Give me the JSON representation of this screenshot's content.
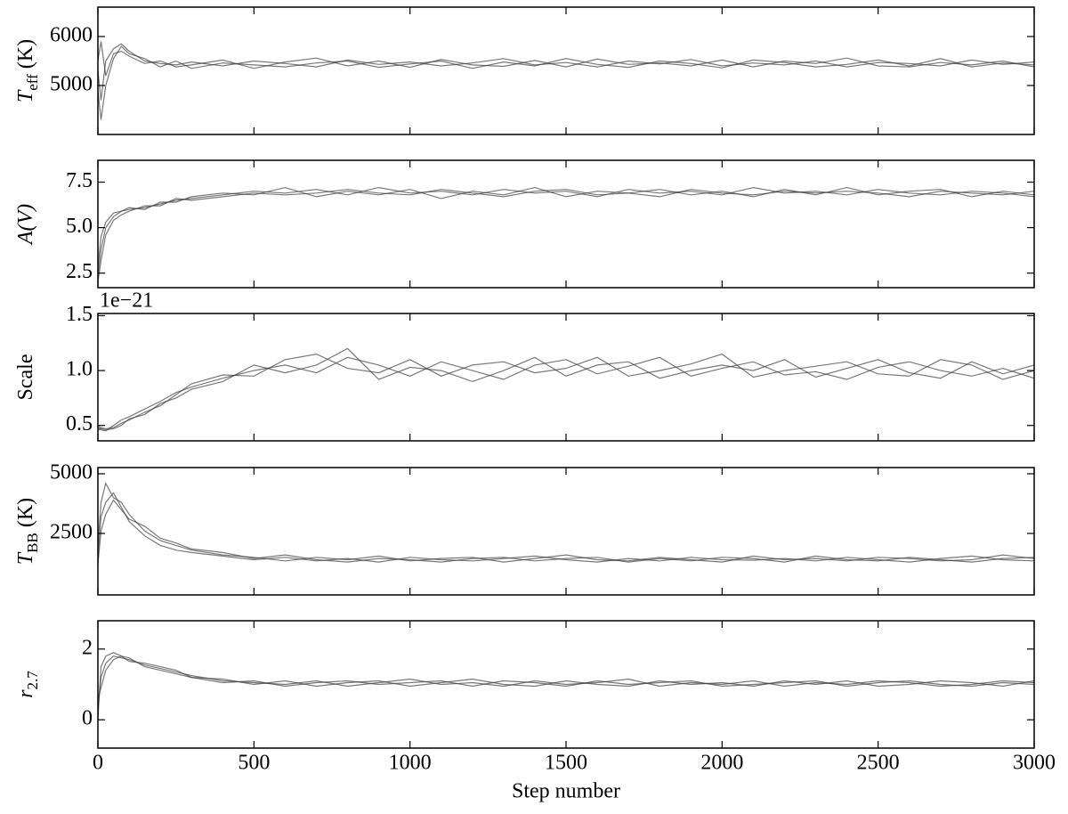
{
  "chart_data": [
    {
      "type": "line",
      "ylabel": "T",
      "ylabel_sub": "eff",
      "ylabel_suffix": "(K)",
      "ylabel_italic": true,
      "x": [
        0,
        10,
        25,
        50,
        75,
        100,
        150,
        200,
        250,
        300,
        400,
        500,
        600,
        700,
        800,
        900,
        1000,
        1100,
        1200,
        1300,
        1400,
        1500,
        1600,
        1700,
        1800,
        1900,
        2000,
        2100,
        2200,
        2300,
        2400,
        2500,
        2600,
        2700,
        2800,
        2900,
        3000
      ],
      "xlim": [
        0,
        3000
      ],
      "xticks": [
        0,
        500,
        1000,
        1500,
        2000,
        2500,
        3000
      ],
      "ylim": [
        4000,
        6600
      ],
      "yticks": [
        5000,
        6000
      ],
      "series": [
        {
          "color": "#404040",
          "values": [
            5300,
            4700,
            5500,
            5750,
            5850,
            5700,
            5500,
            5450,
            5420,
            5480,
            5400,
            5500,
            5450,
            5380,
            5520,
            5430,
            5480,
            5400,
            5460,
            5550,
            5420,
            5470,
            5380,
            5500,
            5440,
            5530,
            5400,
            5460,
            5420,
            5500,
            5380,
            5470,
            5450,
            5400,
            5520,
            5430,
            5480
          ]
        },
        {
          "color": "#404040",
          "values": [
            5500,
            5900,
            5200,
            5650,
            5700,
            5600,
            5450,
            5500,
            5380,
            5420,
            5520,
            5350,
            5480,
            5560,
            5400,
            5500,
            5370,
            5530,
            5420,
            5390,
            5510,
            5380,
            5540,
            5430,
            5460,
            5400,
            5520,
            5380,
            5500,
            5450,
            5560,
            5400,
            5380,
            5470,
            5420,
            5500,
            5380
          ]
        },
        {
          "color": "#404040",
          "values": [
            4900,
            4300,
            5000,
            5550,
            5800,
            5650,
            5550,
            5380,
            5500,
            5350,
            5460,
            5420,
            5380,
            5460,
            5500,
            5370,
            5440,
            5500,
            5350,
            5480,
            5400,
            5550,
            5430,
            5370,
            5500,
            5450,
            5360,
            5520,
            5470,
            5380,
            5430,
            5520,
            5400,
            5550,
            5380,
            5460,
            5420
          ]
        }
      ]
    },
    {
      "type": "line",
      "ylabel": "A(V)",
      "ylabel_italic": true,
      "x": [
        0,
        10,
        25,
        50,
        75,
        100,
        150,
        200,
        250,
        300,
        400,
        500,
        600,
        700,
        800,
        900,
        1000,
        1100,
        1200,
        1300,
        1400,
        1500,
        1600,
        1700,
        1800,
        1900,
        2000,
        2100,
        2200,
        2300,
        2400,
        2500,
        2600,
        2700,
        2800,
        2900,
        3000
      ],
      "xlim": [
        0,
        3000
      ],
      "xticks": [
        0,
        500,
        1000,
        1500,
        2000,
        2500,
        3000
      ],
      "ylim": [
        1.7,
        8.7
      ],
      "yticks": [
        2.5,
        {
          "value": 5,
          "label": "5.0"
        },
        7.5
      ],
      "series": [
        {
          "color": "#404040",
          "values": [
            2.3,
            3.8,
            5.0,
            5.6,
            5.9,
            6.0,
            6.1,
            6.3,
            6.5,
            6.6,
            6.8,
            7.0,
            6.9,
            7.1,
            6.8,
            7.2,
            6.9,
            7.0,
            6.8,
            7.1,
            6.9,
            7.0,
            6.7,
            7.1,
            6.9,
            7.0,
            6.8,
            7.2,
            6.9,
            7.0,
            6.8,
            7.1,
            6.9,
            6.8,
            7.0,
            6.9,
            6.7
          ]
        },
        {
          "color": "#404040",
          "values": [
            2.8,
            4.5,
            5.3,
            5.8,
            5.9,
            6.1,
            6.0,
            6.4,
            6.4,
            6.7,
            6.9,
            6.8,
            7.2,
            6.7,
            7.0,
            6.8,
            7.1,
            6.6,
            7.0,
            6.8,
            7.2,
            6.7,
            7.0,
            6.9,
            7.1,
            6.8,
            7.0,
            6.7,
            7.1,
            6.8,
            7.2,
            6.8,
            7.0,
            7.1,
            6.7,
            7.0,
            6.8
          ]
        },
        {
          "color": "#404040",
          "values": [
            2.0,
            3.2,
            4.6,
            5.4,
            5.7,
            5.9,
            6.2,
            6.2,
            6.6,
            6.5,
            6.7,
            6.9,
            6.8,
            6.9,
            7.1,
            6.9,
            6.8,
            7.1,
            6.9,
            6.7,
            7.0,
            7.1,
            6.8,
            6.9,
            6.7,
            7.1,
            6.9,
            6.8,
            7.0,
            6.9,
            7.0,
            6.9,
            6.7,
            7.0,
            6.9,
            6.8,
            7.0
          ]
        }
      ]
    },
    {
      "type": "line",
      "ylabel": "Scale",
      "ylabel_italic": false,
      "offset_text": "1e−21",
      "x": [
        0,
        10,
        25,
        50,
        75,
        100,
        150,
        200,
        250,
        300,
        400,
        500,
        600,
        700,
        800,
        900,
        1000,
        1100,
        1200,
        1300,
        1400,
        1500,
        1600,
        1700,
        1800,
        1900,
        2000,
        2100,
        2200,
        2300,
        2400,
        2500,
        2600,
        2700,
        2800,
        2900,
        3000
      ],
      "xlim": [
        0,
        3000
      ],
      "xticks": [
        0,
        500,
        1000,
        1500,
        2000,
        2500,
        3000
      ],
      "ylim": [
        0.36,
        1.52
      ],
      "yticks": [
        0.5,
        {
          "value": 1,
          "label": "1.0"
        },
        1.5
      ],
      "series": [
        {
          "color": "#404040",
          "values": [
            0.48,
            0.46,
            0.45,
            0.5,
            0.55,
            0.58,
            0.65,
            0.72,
            0.8,
            0.85,
            0.93,
            1.0,
            1.05,
            0.98,
            1.12,
            1.05,
            0.95,
            1.08,
            1.0,
            0.92,
            1.05,
            1.1,
            0.97,
            1.04,
            1.12,
            0.95,
            1.02,
            1.08,
            0.96,
            0.99,
            0.92,
            1.03,
            1.08,
            1.0,
            0.95,
            1.02,
            0.93
          ]
        },
        {
          "color": "#404040",
          "values": [
            0.45,
            0.48,
            0.47,
            0.48,
            0.52,
            0.55,
            0.62,
            0.68,
            0.78,
            0.88,
            0.96,
            0.95,
            1.1,
            1.15,
            1.02,
            0.98,
            1.1,
            0.95,
            1.05,
            1.08,
            0.98,
            1.02,
            1.12,
            0.95,
            1.0,
            1.06,
            1.15,
            0.94,
            1.0,
            1.04,
            1.08,
            0.97,
            0.95,
            1.1,
            1.05,
            0.92,
            1.0
          ]
        },
        {
          "color": "#404040",
          "values": [
            0.5,
            0.47,
            0.46,
            0.47,
            0.5,
            0.56,
            0.6,
            0.7,
            0.75,
            0.83,
            0.9,
            1.05,
            0.98,
            1.05,
            1.2,
            0.92,
            1.03,
            1.0,
            0.9,
            1.0,
            1.12,
            0.95,
            1.05,
            1.08,
            0.93,
            1.0,
            1.05,
            1.0,
            1.1,
            0.94,
            1.02,
            1.1,
            0.98,
            0.93,
            1.08,
            0.97,
            1.05
          ]
        }
      ]
    },
    {
      "type": "line",
      "ylabel": "T",
      "ylabel_sub": "BB",
      "ylabel_suffix": "(K)",
      "ylabel_italic": true,
      "x": [
        0,
        10,
        25,
        50,
        75,
        100,
        150,
        200,
        250,
        300,
        400,
        500,
        600,
        700,
        800,
        900,
        1000,
        1100,
        1200,
        1300,
        1400,
        1500,
        1600,
        1700,
        1800,
        1900,
        2000,
        2100,
        2200,
        2300,
        2400,
        2500,
        2600,
        2700,
        2800,
        2900,
        3000
      ],
      "xlim": [
        0,
        3000
      ],
      "xticks": [
        0,
        500,
        1000,
        1500,
        2000,
        2500,
        3000
      ],
      "ylim": [
        -75,
        5260
      ],
      "yticks": [
        2500,
        5000
      ],
      "series": [
        {
          "color": "#404040",
          "values": [
            1500,
            3200,
            3800,
            4200,
            3600,
            3000,
            2400,
            2000,
            1800,
            1700,
            1550,
            1400,
            1500,
            1350,
            1450,
            1300,
            1500,
            1400,
            1350,
            1450,
            1550,
            1400,
            1300,
            1450,
            1350,
            1500,
            1400,
            1380,
            1450,
            1350,
            1500,
            1400,
            1300,
            1450,
            1550,
            1400,
            1350
          ]
        },
        {
          "color": "#404040",
          "values": [
            2000,
            3800,
            4600,
            4000,
            3800,
            3300,
            2600,
            2200,
            2000,
            1800,
            1600,
            1500,
            1350,
            1500,
            1400,
            1550,
            1350,
            1450,
            1500,
            1300,
            1450,
            1600,
            1400,
            1350,
            1500,
            1400,
            1300,
            1550,
            1400,
            1450,
            1350,
            1500,
            1450,
            1350,
            1400,
            1600,
            1450
          ]
        },
        {
          "color": "#404040",
          "values": [
            1200,
            2600,
            3300,
            3900,
            3500,
            3100,
            2800,
            2300,
            2100,
            1850,
            1700,
            1450,
            1600,
            1400,
            1300,
            1450,
            1400,
            1300,
            1450,
            1500,
            1350,
            1450,
            1500,
            1300,
            1450,
            1350,
            1500,
            1450,
            1300,
            1550,
            1400,
            1350,
            1500,
            1400,
            1300,
            1450,
            1500
          ]
        }
      ]
    },
    {
      "type": "line",
      "ylabel": "r",
      "ylabel_sub": "2.7",
      "ylabel_italic": true,
      "xlabel": "Step number",
      "x": [
        0,
        10,
        25,
        50,
        75,
        100,
        150,
        200,
        250,
        300,
        400,
        500,
        600,
        700,
        800,
        900,
        1000,
        1100,
        1200,
        1300,
        1400,
        1500,
        1600,
        1700,
        1800,
        1900,
        2000,
        2100,
        2200,
        2300,
        2400,
        2500,
        2600,
        2700,
        2800,
        2900,
        3000
      ],
      "xlim": [
        0,
        3000
      ],
      "xticks": [
        0,
        500,
        1000,
        1500,
        2000,
        2500,
        3000
      ],
      "xtick_labels": true,
      "ylim": [
        -0.8,
        2.8
      ],
      "yticks": [
        0,
        2
      ],
      "series": [
        {
          "color": "#404040",
          "values": [
            0.3,
            1.2,
            1.6,
            1.8,
            1.75,
            1.7,
            1.55,
            1.45,
            1.35,
            1.25,
            1.1,
            1.05,
            1.0,
            1.1,
            0.95,
            1.05,
            1.15,
            1.0,
            1.05,
            0.95,
            1.1,
            1.0,
            1.05,
            1.15,
            0.95,
            1.05,
            1.0,
            1.1,
            0.95,
            1.05,
            1.0,
            1.1,
            1.05,
            0.95,
            1.0,
            1.1,
            1.05
          ]
        },
        {
          "color": "#404040",
          "values": [
            0.0,
            1.5,
            1.8,
            1.9,
            1.8,
            1.65,
            1.6,
            1.5,
            1.4,
            1.2,
            1.15,
            1.0,
            1.1,
            0.95,
            1.05,
            1.1,
            0.95,
            1.05,
            1.15,
            1.0,
            0.95,
            1.1,
            1.0,
            0.95,
            1.1,
            1.0,
            1.05,
            0.95,
            1.1,
            1.0,
            1.1,
            0.95,
            1.0,
            1.1,
            1.05,
            0.95,
            1.1
          ]
        },
        {
          "color": "#404040",
          "values": [
            0.6,
            0.9,
            1.4,
            1.7,
            1.8,
            1.75,
            1.5,
            1.4,
            1.3,
            1.2,
            1.05,
            1.1,
            0.95,
            1.05,
            1.1,
            1.0,
            1.05,
            1.1,
            0.95,
            1.1,
            1.05,
            0.95,
            1.1,
            1.0,
            1.05,
            1.1,
            0.95,
            1.0,
            1.05,
            1.1,
            0.95,
            1.05,
            1.1,
            1.0,
            0.95,
            1.05,
            1.0
          ]
        }
      ]
    }
  ]
}
